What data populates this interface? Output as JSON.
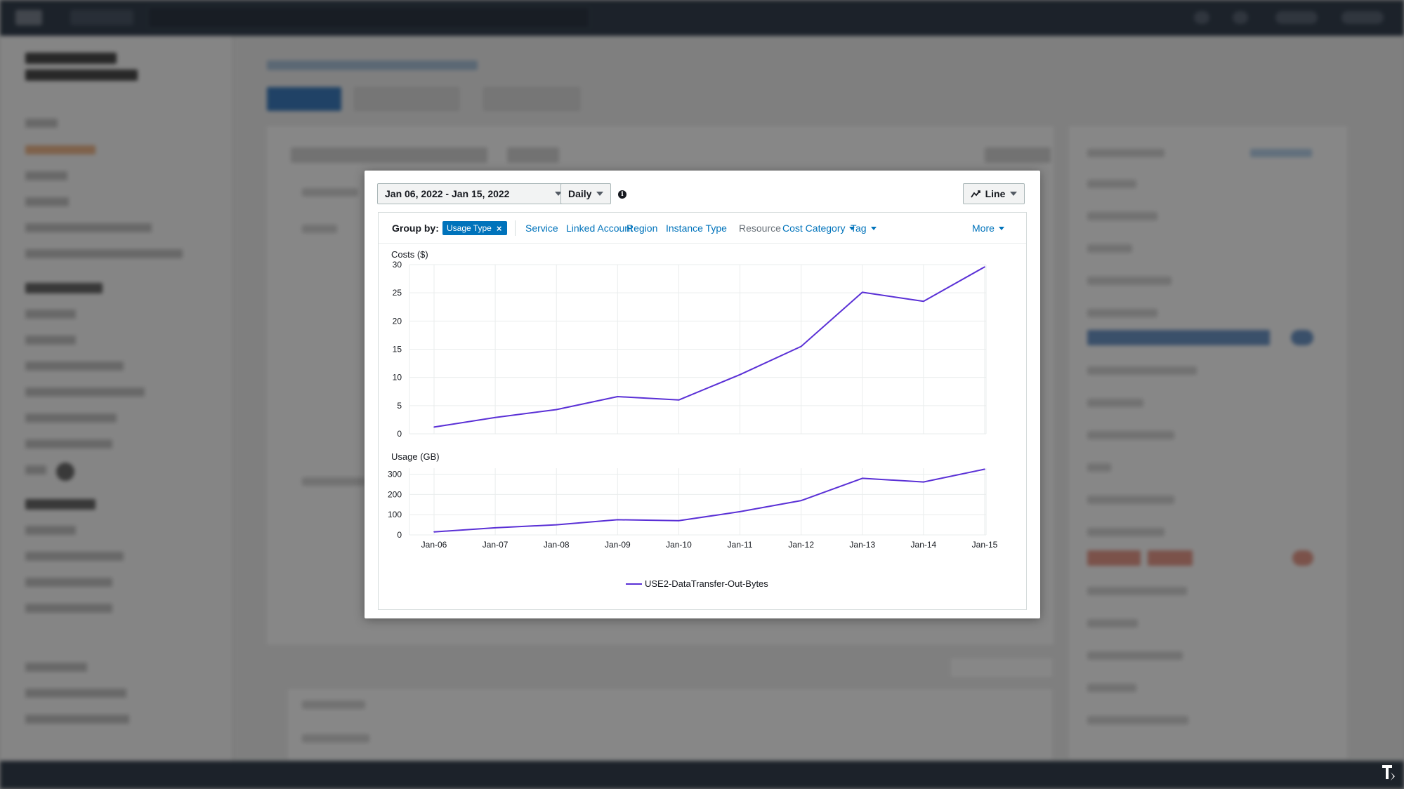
{
  "toolbar": {
    "date_range": "Jan 06, 2022 - Jan 15, 2022",
    "granularity": "Daily",
    "chart_style": "Line"
  },
  "group_by": {
    "label": "Group by:",
    "active_chip": "Usage Type",
    "options": [
      {
        "label": "Service",
        "enabled": true,
        "dropdown": false
      },
      {
        "label": "Linked Account",
        "enabled": true,
        "dropdown": false
      },
      {
        "label": "Region",
        "enabled": true,
        "dropdown": false
      },
      {
        "label": "Instance Type",
        "enabled": true,
        "dropdown": false
      },
      {
        "label": "Resource",
        "enabled": false,
        "dropdown": false
      },
      {
        "label": "Cost Category",
        "enabled": true,
        "dropdown": true
      },
      {
        "label": "Tag",
        "enabled": true,
        "dropdown": true
      }
    ],
    "more": "More"
  },
  "chart_data": [
    {
      "type": "line",
      "title": "Costs ($)",
      "x": [
        "Jan-06",
        "Jan-07",
        "Jan-08",
        "Jan-09",
        "Jan-10",
        "Jan-11",
        "Jan-12",
        "Jan-13",
        "Jan-14",
        "Jan-15"
      ],
      "series": [
        {
          "name": "USE2-DataTransfer-Out-Bytes",
          "values": [
            1.2,
            2.9,
            4.3,
            6.6,
            6.0,
            10.5,
            15.5,
            25.1,
            23.5,
            29.6
          ]
        }
      ],
      "ylim": [
        0,
        30
      ],
      "yticks": [
        0,
        5,
        10,
        15,
        20,
        25,
        30
      ],
      "grid": true,
      "color": "#5a30d6"
    },
    {
      "type": "line",
      "title": "Usage (GB)",
      "x": [
        "Jan-06",
        "Jan-07",
        "Jan-08",
        "Jan-09",
        "Jan-10",
        "Jan-11",
        "Jan-12",
        "Jan-13",
        "Jan-14",
        "Jan-15"
      ],
      "series": [
        {
          "name": "USE2-DataTransfer-Out-Bytes",
          "values": [
            15,
            35,
            50,
            75,
            70,
            115,
            170,
            280,
            262,
            325
          ]
        }
      ],
      "ylim": [
        0,
        330
      ],
      "yticks": [
        0,
        100,
        200,
        300
      ],
      "grid": true,
      "color": "#5a30d6"
    }
  ],
  "legend": {
    "label": "USE2-DataTransfer-Out-Bytes",
    "position": "bottom-center",
    "color": "#5a30d6"
  }
}
